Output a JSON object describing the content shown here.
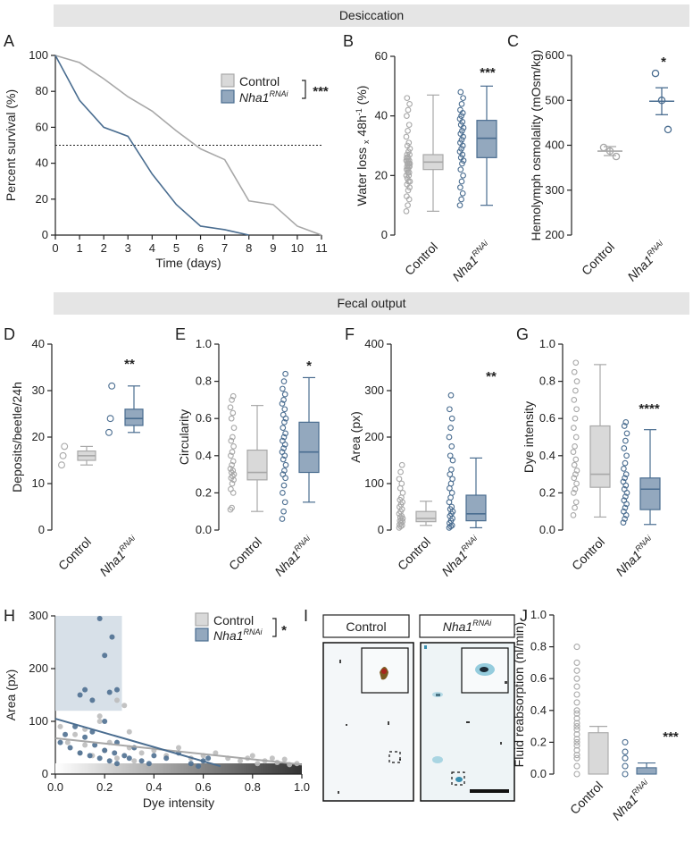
{
  "banners": {
    "desiccation": "Desiccation",
    "fecal_output": "Fecal output"
  },
  "colors": {
    "control": "#a8a8a8",
    "control_light": "#d9d9d9",
    "rnai": "#4a6d90",
    "rnai_fill": "#93a8be",
    "banner": "#e5e5e5"
  },
  "groups": {
    "control": "Control",
    "rnai_base": "Nha1",
    "rnai_sup": "RNAi"
  },
  "chart_data": [
    {
      "panel": "A",
      "type": "line",
      "xlabel": "Time (days)",
      "ylabel": "Percent survival (%)",
      "xlim": [
        0,
        11
      ],
      "ylim": [
        0,
        100
      ],
      "xticks": [
        "0",
        "1",
        "2",
        "3",
        "4",
        "5",
        "6",
        "7",
        "8",
        "9",
        "10",
        "11"
      ],
      "yticks": [
        "0",
        "20",
        "40",
        "60",
        "80",
        "100"
      ],
      "reference_line_y": 50,
      "significance": "***",
      "legend": [
        "Control",
        "Nha1 RNAi"
      ],
      "series": [
        {
          "name": "Control",
          "x": [
            0,
            1,
            2,
            3,
            4,
            5,
            6,
            7,
            8,
            9,
            10,
            11
          ],
          "y": [
            100,
            96,
            87,
            77,
            69,
            58,
            48,
            42,
            19,
            17,
            5,
            0
          ]
        },
        {
          "name": "Nha1 RNAi",
          "x": [
            0,
            1,
            2,
            3,
            4,
            5,
            6,
            7,
            8
          ],
          "y": [
            100,
            75,
            60,
            55,
            34,
            17,
            5,
            3,
            0
          ]
        }
      ]
    },
    {
      "panel": "B",
      "type": "box",
      "ylabel": "Water loss x 48h-1 (%)",
      "ylim": [
        0,
        60
      ],
      "yticks": [
        "0",
        "20",
        "40",
        "60"
      ],
      "significance": "***",
      "groups": [
        {
          "name": "Control",
          "min": 8,
          "q1": 22,
          "median": 24.5,
          "q3": 27,
          "max": 47,
          "points": [
            8,
            10,
            12,
            13,
            15,
            16,
            17,
            18,
            18,
            19,
            20,
            20,
            21,
            21,
            22,
            22,
            23,
            23,
            23,
            24,
            24,
            24,
            25,
            25,
            25,
            26,
            26,
            27,
            27,
            28,
            29,
            30,
            31,
            33,
            35,
            37,
            40,
            42,
            44,
            46
          ]
        },
        {
          "name": "Nha1 RNAi",
          "min": 10,
          "q1": 26,
          "median": 32.5,
          "q3": 38.5,
          "max": 50,
          "points": [
            10,
            12,
            14,
            16,
            18,
            20,
            22,
            24,
            25,
            26,
            27,
            28,
            29,
            30,
            31,
            32,
            33,
            34,
            35,
            36,
            37,
            38,
            39,
            40,
            41,
            42,
            44,
            46,
            48
          ]
        }
      ]
    },
    {
      "panel": "C",
      "type": "scatter-mean-sem",
      "ylabel": "Hemolymph osmolality (mOsm/kg)",
      "ylim": [
        200,
        600
      ],
      "yticks": [
        "200",
        "300",
        "400",
        "500",
        "600"
      ],
      "significance": "*",
      "groups": [
        {
          "name": "Control",
          "mean": 387,
          "sem": 10,
          "points": [
            395,
            387,
            375
          ]
        },
        {
          "name": "Nha1 RNAi",
          "mean": 498,
          "sem": 30,
          "points": [
            560,
            500,
            435
          ]
        }
      ]
    },
    {
      "panel": "D",
      "type": "box",
      "ylabel": "Deposits/beetle/24h",
      "ylim": [
        0,
        40
      ],
      "yticks": [
        "0",
        "10",
        "20",
        "30",
        "40"
      ],
      "significance": "**",
      "groups": [
        {
          "name": "Control",
          "min": 14,
          "q1": 15,
          "median": 16,
          "q3": 17,
          "max": 18,
          "points": [
            14,
            16,
            18
          ]
        },
        {
          "name": "Nha1 RNAi",
          "min": 21,
          "q1": 22.5,
          "median": 24,
          "q3": 26,
          "max": 31,
          "points": [
            21,
            24,
            31
          ]
        }
      ]
    },
    {
      "panel": "E",
      "type": "box",
      "ylabel": "Circularity",
      "ylim": [
        0,
        1.0
      ],
      "yticks": [
        "0.0",
        "0.2",
        "0.4",
        "0.6",
        "0.8",
        "1.0"
      ],
      "significance": "*",
      "groups": [
        {
          "name": "Control",
          "min": 0.1,
          "q1": 0.27,
          "median": 0.31,
          "q3": 0.43,
          "max": 0.67,
          "points": [
            0.11,
            0.12,
            0.2,
            0.22,
            0.25,
            0.27,
            0.28,
            0.29,
            0.3,
            0.31,
            0.32,
            0.33,
            0.35,
            0.37,
            0.4,
            0.42,
            0.45,
            0.48,
            0.5,
            0.55,
            0.6,
            0.63,
            0.66,
            0.7,
            0.72
          ]
        },
        {
          "name": "Nha1 RNAi",
          "min": 0.15,
          "q1": 0.31,
          "median": 0.42,
          "q3": 0.58,
          "max": 0.82,
          "points": [
            0.06,
            0.1,
            0.15,
            0.2,
            0.24,
            0.28,
            0.3,
            0.32,
            0.35,
            0.38,
            0.4,
            0.42,
            0.44,
            0.46,
            0.48,
            0.5,
            0.52,
            0.55,
            0.58,
            0.6,
            0.62,
            0.65,
            0.68,
            0.7,
            0.73,
            0.76,
            0.8,
            0.84
          ]
        }
      ]
    },
    {
      "panel": "F",
      "type": "box",
      "ylabel": "Area (px)",
      "ylim": [
        0,
        400
      ],
      "yticks": [
        "0",
        "100",
        "200",
        "300",
        "400"
      ],
      "significance": "**",
      "groups": [
        {
          "name": "Control",
          "min": 10,
          "q1": 18,
          "median": 25,
          "q3": 40,
          "max": 62,
          "points": [
            5,
            8,
            10,
            12,
            15,
            18,
            20,
            22,
            25,
            28,
            30,
            35,
            40,
            45,
            50,
            55,
            60,
            65,
            70,
            80,
            90,
            100,
            110,
            125,
            140
          ]
        },
        {
          "name": "Nha1 RNAi",
          "min": 5,
          "q1": 20,
          "median": 35,
          "q3": 75,
          "max": 155,
          "points": [
            5,
            8,
            10,
            15,
            20,
            25,
            30,
            35,
            40,
            45,
            50,
            60,
            70,
            80,
            90,
            100,
            110,
            120,
            130,
            150,
            160,
            180,
            200,
            220,
            240,
            260,
            290
          ]
        }
      ]
    },
    {
      "panel": "G",
      "type": "box",
      "ylabel": "Dye intensity",
      "ylim": [
        0,
        1.0
      ],
      "yticks": [
        "0.0",
        "0.2",
        "0.4",
        "0.6",
        "0.8",
        "1.0"
      ],
      "significance": "****",
      "groups": [
        {
          "name": "Control",
          "min": 0.07,
          "q1": 0.23,
          "median": 0.3,
          "q3": 0.56,
          "max": 0.89,
          "points": [
            0.08,
            0.12,
            0.15,
            0.2,
            0.22,
            0.25,
            0.28,
            0.3,
            0.32,
            0.35,
            0.38,
            0.42,
            0.45,
            0.5,
            0.55,
            0.6,
            0.65,
            0.7,
            0.75,
            0.8,
            0.85,
            0.9
          ]
        },
        {
          "name": "Nha1 RNAi",
          "min": 0.03,
          "q1": 0.11,
          "median": 0.22,
          "q3": 0.28,
          "max": 0.54,
          "points": [
            0.04,
            0.06,
            0.08,
            0.1,
            0.12,
            0.14,
            0.16,
            0.18,
            0.2,
            0.22,
            0.24,
            0.26,
            0.28,
            0.3,
            0.33,
            0.36,
            0.4,
            0.44,
            0.48,
            0.52,
            0.56,
            0.58
          ]
        }
      ]
    },
    {
      "panel": "H",
      "type": "scatter",
      "xlabel": "Dye intensity",
      "ylabel": "Area (px)",
      "xlim": [
        0,
        1.0
      ],
      "ylim": [
        0,
        300
      ],
      "xticks": [
        "0.0",
        "0.2",
        "0.4",
        "0.6",
        "0.8",
        "1.0"
      ],
      "yticks": [
        "0",
        "100",
        "200",
        "300"
      ],
      "significance": "*",
      "legend": [
        "Control",
        "Nha1 RNAi"
      ],
      "highlight_region": {
        "x": [
          0,
          0.27
        ],
        "y": [
          120,
          300
        ]
      },
      "series": [
        {
          "name": "Control",
          "fit": [
            [
              0,
              68
            ],
            [
              1.0,
              18
            ]
          ],
          "x": [
            0.02,
            0.05,
            0.08,
            0.1,
            0.12,
            0.15,
            0.18,
            0.2,
            0.22,
            0.25,
            0.28,
            0.3,
            0.32,
            0.35,
            0.4,
            0.45,
            0.5,
            0.55,
            0.6,
            0.65,
            0.7,
            0.75,
            0.78,
            0.8,
            0.82,
            0.85,
            0.88,
            0.9,
            0.93,
            0.95,
            0.98,
            0.25,
            0.3,
            0.18,
            0.12
          ],
          "y": [
            90,
            60,
            75,
            40,
            55,
            35,
            100,
            45,
            60,
            30,
            130,
            50,
            25,
            40,
            45,
            35,
            50,
            30,
            35,
            40,
            30,
            25,
            30,
            35,
            20,
            25,
            30,
            22,
            28,
            18,
            20,
            140,
            80,
            110,
            85
          ]
        },
        {
          "name": "Nha1 RNAi",
          "fit": [
            [
              0,
              105
            ],
            [
              0.67,
              15
            ]
          ],
          "x": [
            0.02,
            0.04,
            0.06,
            0.08,
            0.1,
            0.12,
            0.14,
            0.15,
            0.16,
            0.18,
            0.2,
            0.2,
            0.22,
            0.24,
            0.25,
            0.25,
            0.28,
            0.3,
            0.32,
            0.35,
            0.38,
            0.4,
            0.45,
            0.5,
            0.55,
            0.58,
            0.6,
            0.62,
            0.1,
            0.12,
            0.15,
            0.18,
            0.2,
            0.22,
            0.23,
            0.25
          ],
          "y": [
            60,
            75,
            50,
            90,
            40,
            70,
            35,
            80,
            55,
            30,
            45,
            100,
            25,
            40,
            60,
            20,
            35,
            30,
            50,
            25,
            20,
            35,
            30,
            40,
            20,
            15,
            25,
            30,
            150,
            160,
            140,
            295,
            225,
            155,
            260,
            160
          ]
        }
      ]
    },
    {
      "panel": "I",
      "type": "image",
      "labels": [
        "Control",
        "Nha1 RNAi"
      ]
    },
    {
      "panel": "J",
      "type": "bar-points",
      "ylabel": "Fluid reabsorption (nl/min)",
      "ylim": [
        0,
        1.0
      ],
      "yticks": [
        "0.0",
        "0.2",
        "0.4",
        "0.6",
        "0.8",
        "1.0"
      ],
      "significance": "***",
      "groups": [
        {
          "name": "Control",
          "mean": 0.26,
          "sem": 0.04,
          "points": [
            0.0,
            0.05,
            0.1,
            0.12,
            0.15,
            0.18,
            0.2,
            0.22,
            0.25,
            0.28,
            0.3,
            0.32,
            0.35,
            0.38,
            0.4,
            0.45,
            0.5,
            0.55,
            0.6,
            0.65,
            0.7,
            0.8
          ]
        },
        {
          "name": "Nha1 RNAi",
          "mean": 0.04,
          "sem": 0.03,
          "points": [
            0.0,
            0.05,
            0.1,
            0.14,
            0.2
          ]
        }
      ]
    }
  ]
}
